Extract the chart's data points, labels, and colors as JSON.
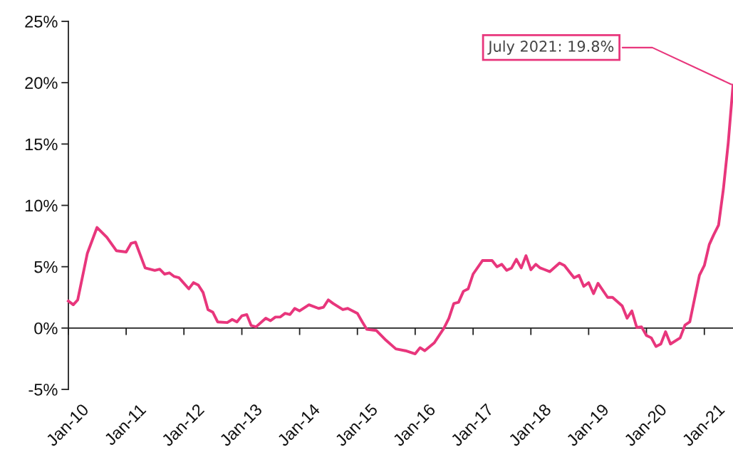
{
  "chart_data": {
    "type": "line",
    "x": [
      "2010-01",
      "2010-02",
      "2010-03",
      "2010-05",
      "2010-07",
      "2010-09",
      "2010-11",
      "2011-01",
      "2011-02",
      "2011-03",
      "2011-05",
      "2011-07",
      "2011-08",
      "2011-09",
      "2011-10",
      "2011-11",
      "2011-12",
      "2012-02",
      "2012-03",
      "2012-04",
      "2012-05",
      "2012-06",
      "2012-07",
      "2012-08",
      "2012-10",
      "2012-11",
      "2012-12",
      "2013-01",
      "2013-02",
      "2013-03",
      "2013-04",
      "2013-06",
      "2013-07",
      "2013-08",
      "2013-09",
      "2013-10",
      "2013-11",
      "2013-12",
      "2014-01",
      "2014-03",
      "2014-05",
      "2014-06",
      "2014-07",
      "2014-08",
      "2014-10",
      "2014-11",
      "2015-01",
      "2015-02",
      "2015-03",
      "2015-05",
      "2015-07",
      "2015-09",
      "2015-11",
      "2016-01",
      "2016-02",
      "2016-03",
      "2016-05",
      "2016-07",
      "2016-08",
      "2016-09",
      "2016-10",
      "2016-11",
      "2016-12",
      "2017-01",
      "2017-03",
      "2017-05",
      "2017-06",
      "2017-07",
      "2017-08",
      "2017-09",
      "2017-10",
      "2017-11",
      "2017-12",
      "2018-01",
      "2018-02",
      "2018-03",
      "2018-05",
      "2018-07",
      "2018-08",
      "2018-10",
      "2018-11",
      "2018-12",
      "2019-01",
      "2019-02",
      "2019-03",
      "2019-05",
      "2019-06",
      "2019-08",
      "2019-09",
      "2019-10",
      "2019-11",
      "2019-12",
      "2020-01",
      "2020-02",
      "2020-03",
      "2020-04",
      "2020-05",
      "2020-06",
      "2020-08",
      "2020-09",
      "2020-10",
      "2020-12",
      "2021-01",
      "2021-02",
      "2021-03",
      "2021-04",
      "2021-05",
      "2021-06",
      "2021-07"
    ],
    "series": [
      {
        "color": "#e8367c",
        "values": [
          2.2,
          1.9,
          2.3,
          6.1,
          8.2,
          7.4,
          6.3,
          6.2,
          6.9,
          7.0,
          4.9,
          4.7,
          4.8,
          4.4,
          4.5,
          4.2,
          4.1,
          3.2,
          3.7,
          3.5,
          2.9,
          1.5,
          1.3,
          0.5,
          0.45,
          0.7,
          0.5,
          1.0,
          1.1,
          0.2,
          0.1,
          0.8,
          0.6,
          0.9,
          0.9,
          1.2,
          1.1,
          1.6,
          1.4,
          1.9,
          1.6,
          1.7,
          2.3,
          2.0,
          1.5,
          1.6,
          1.2,
          0.5,
          -0.1,
          -0.2,
          -1.0,
          -1.7,
          -1.85,
          -2.1,
          -1.6,
          -1.85,
          -1.2,
          0.0,
          0.8,
          2.0,
          2.1,
          3.0,
          3.2,
          4.4,
          5.5,
          5.5,
          5.0,
          5.2,
          4.7,
          4.9,
          5.6,
          4.9,
          5.9,
          4.75,
          5.2,
          4.9,
          4.6,
          5.3,
          5.1,
          4.1,
          4.3,
          3.4,
          3.7,
          2.8,
          3.65,
          2.5,
          2.5,
          1.8,
          0.8,
          1.4,
          0.05,
          0.1,
          -0.6,
          -0.8,
          -1.5,
          -1.3,
          -0.3,
          -1.3,
          -0.8,
          0.25,
          0.5,
          4.3,
          5.1,
          6.8,
          7.6,
          8.4,
          11.3,
          15.1,
          19.8
        ]
      }
    ],
    "xlim": [
      "2010-01",
      "2021-07"
    ],
    "xticks": [
      {
        "value": "2010-01",
        "label": "Jan-10"
      },
      {
        "value": "2011-01",
        "label": "Jan-11"
      },
      {
        "value": "2012-01",
        "label": "Jan-12"
      },
      {
        "value": "2013-01",
        "label": "Jan-13"
      },
      {
        "value": "2014-01",
        "label": "Jan-14"
      },
      {
        "value": "2015-01",
        "label": "Jan-15"
      },
      {
        "value": "2016-01",
        "label": "Jan-16"
      },
      {
        "value": "2017-01",
        "label": "Jan-17"
      },
      {
        "value": "2018-01",
        "label": "Jan-18"
      },
      {
        "value": "2019-01",
        "label": "Jan-19"
      },
      {
        "value": "2020-01",
        "label": "Jan-20"
      },
      {
        "value": "2021-01",
        "label": "Jan-21"
      }
    ],
    "ylim": [
      -5,
      25
    ],
    "yticks": [
      {
        "value": -5,
        "label": "-5%"
      },
      {
        "value": 0,
        "label": "0%"
      },
      {
        "value": 5,
        "label": "5%"
      },
      {
        "value": 10,
        "label": "10%"
      },
      {
        "value": 15,
        "label": "15%"
      },
      {
        "value": 20,
        "label": "20%"
      },
      {
        "value": 25,
        "label": "25%"
      }
    ],
    "legend": false,
    "marker": "none",
    "line_style": "solid",
    "annotations": [
      {
        "text": "July 2021: 19.8%",
        "x": "2021-07",
        "y": 19.8
      }
    ]
  }
}
